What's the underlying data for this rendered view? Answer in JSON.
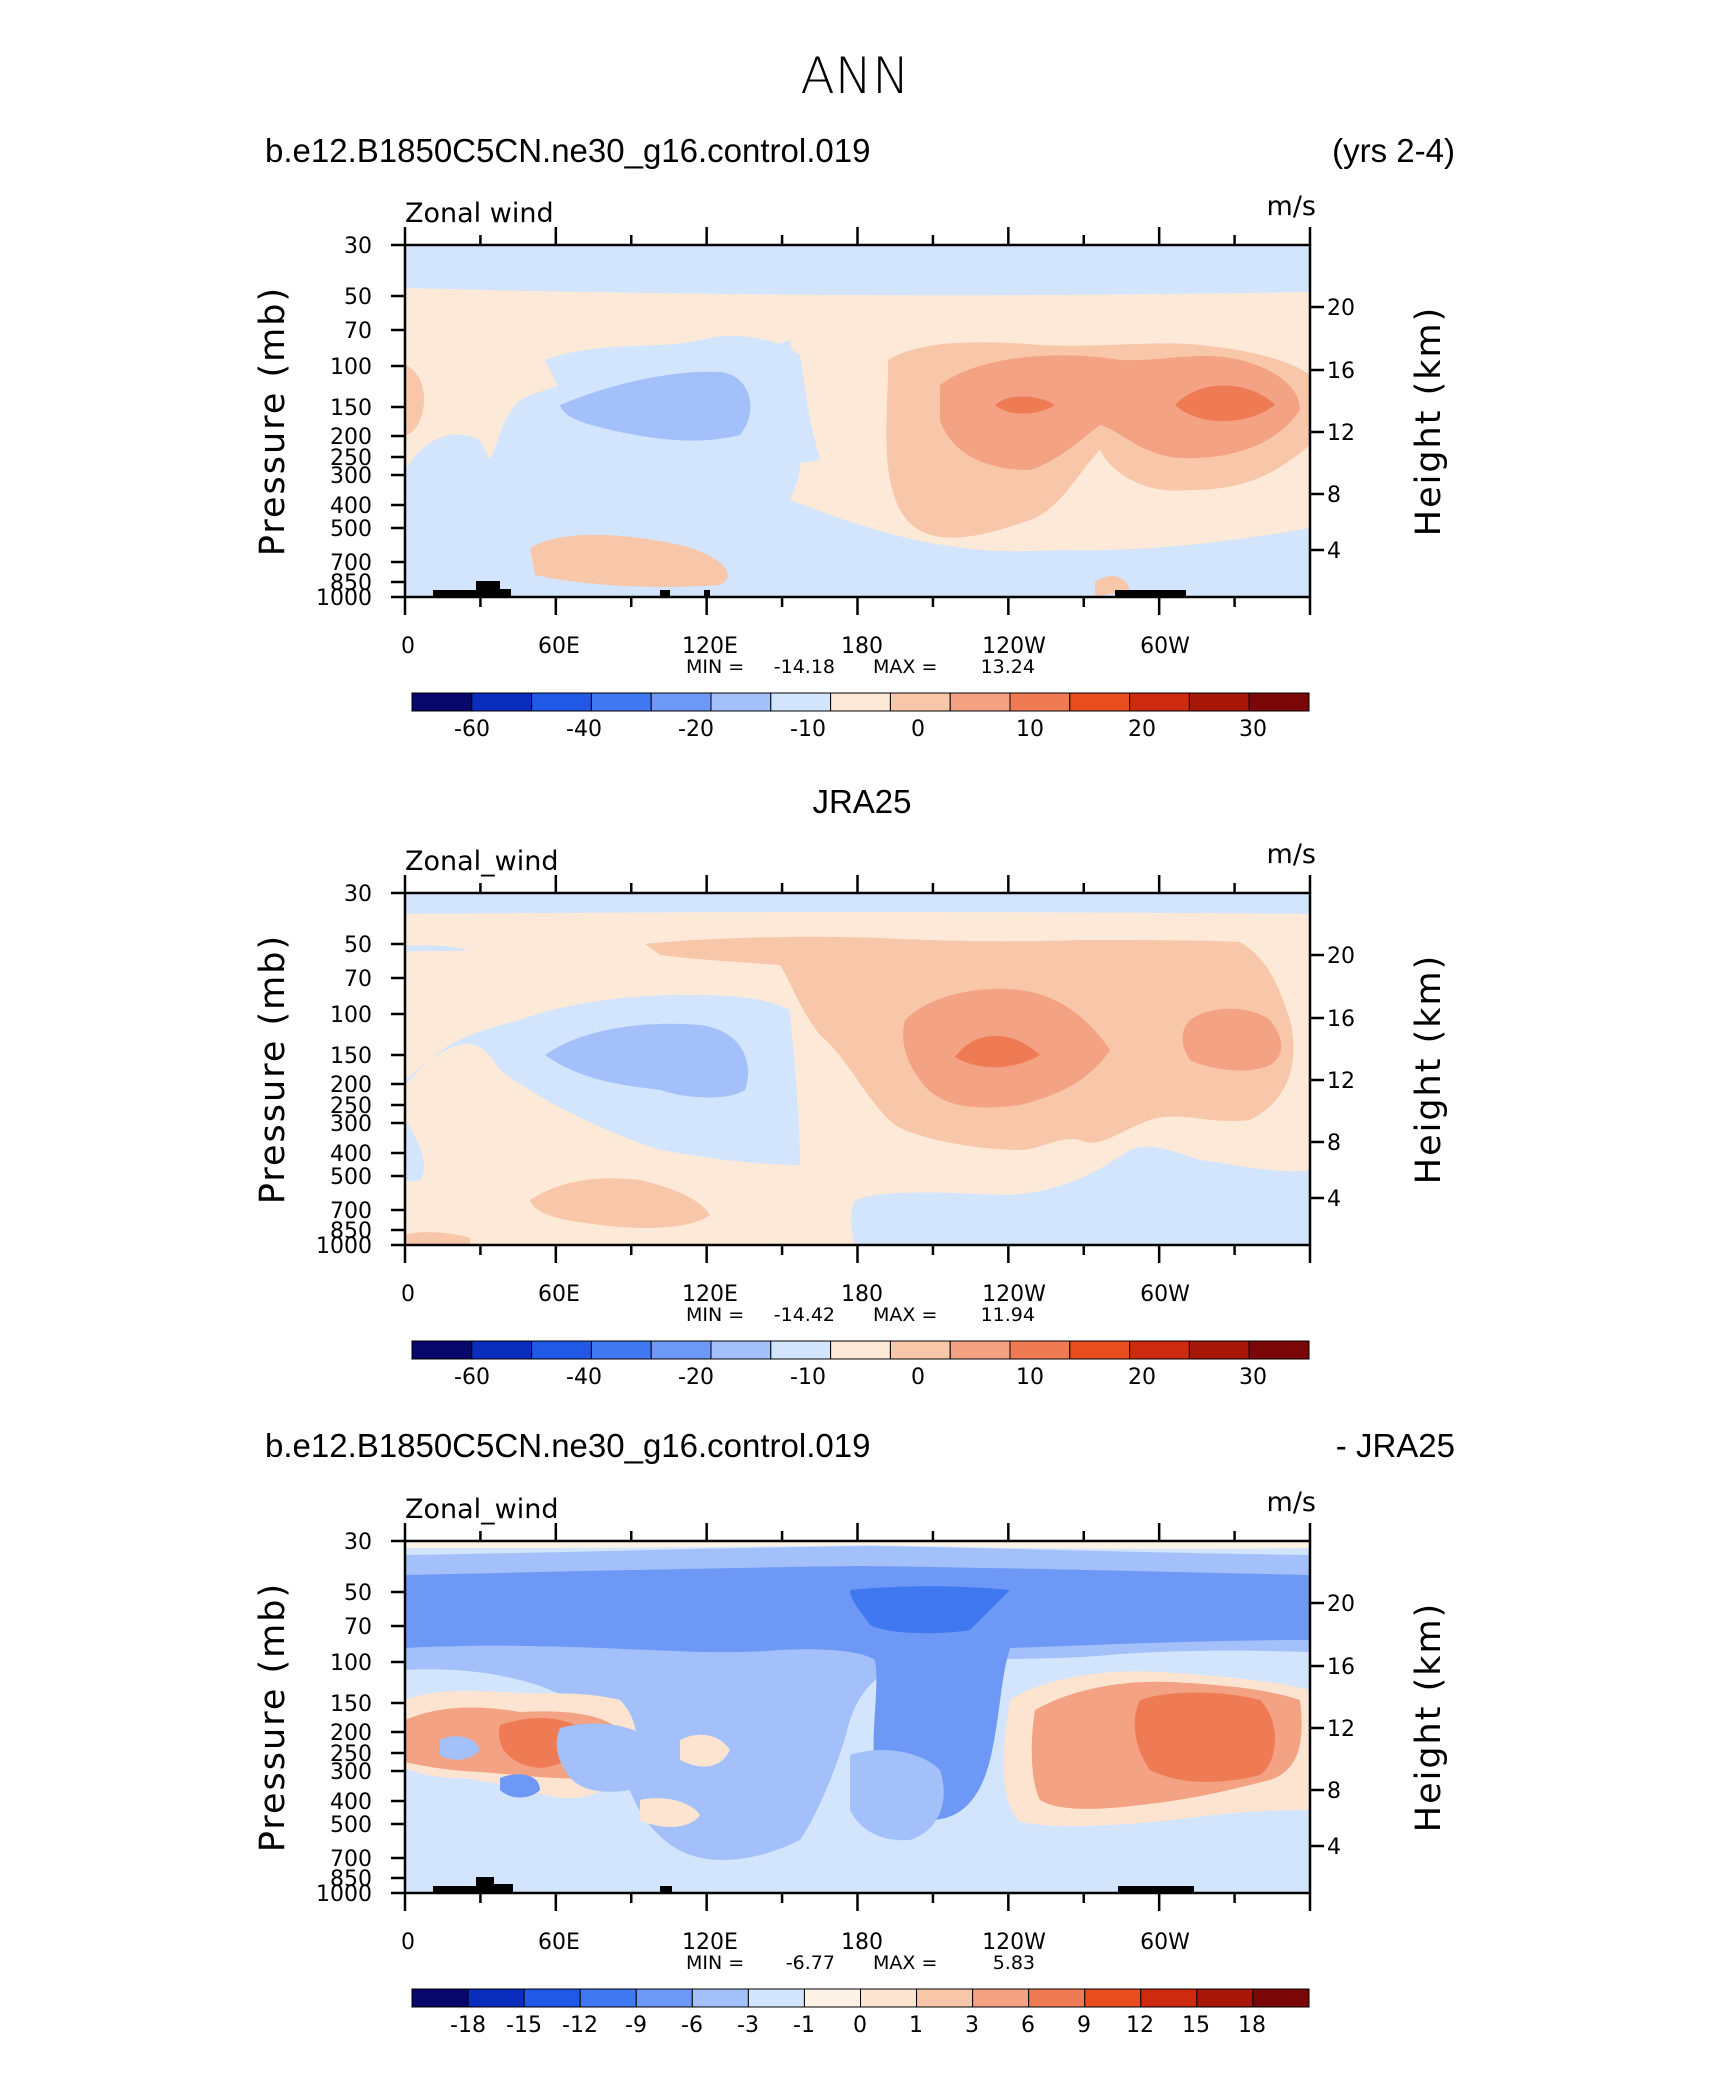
{
  "figure": {
    "season": "ANN",
    "units": "m/s",
    "colors": {
      "cb_main": [
        "#08086b",
        "#0a2dbd",
        "#2158e5",
        "#3f78f0",
        "#6e98f5",
        "#a3c0fa",
        "#d2e5fc",
        "#fde9d8",
        "#f8c7aa",
        "#f3a283",
        "#ef7b55",
        "#e84d1f",
        "#cc2b10",
        "#a8170a",
        "#7a0707"
      ],
      "cb_diff": [
        "#08086b",
        "#0a2dbd",
        "#2158e5",
        "#3f78f0",
        "#6e98f5",
        "#a3c0fa",
        "#d2e5fc",
        "#fdf2e6",
        "#fde4d1",
        "#f8c7aa",
        "#f3a283",
        "#ef7b55",
        "#e84d1f",
        "#cc2b10",
        "#a8170a",
        "#7a0707"
      ],
      "land": "#000000"
    }
  },
  "chart_data": [
    {
      "type": "contour",
      "id": "model",
      "title_left": "b.e12.B1850C5CN.ne30_g16.control.019",
      "title_right": "(yrs 2-4)",
      "variable_label": "Zonal wind",
      "units_label": "m/s",
      "ylabel": "Pressure (mb)",
      "ylabel_right": "Height (km)",
      "xticks": [
        "0",
        "60E",
        "120E",
        "180",
        "120W",
        "60W"
      ],
      "xrange_deg": [
        0,
        360
      ],
      "yticks": [
        "30",
        "50",
        "70",
        "100",
        "150",
        "200",
        "250",
        "300",
        "400",
        "500",
        "700",
        "850",
        "1000"
      ],
      "yticks_right": [
        "20",
        "16",
        "12",
        "8",
        "4"
      ],
      "stats_min_label": "MIN =",
      "stats_min": "-14.18",
      "stats_max_label": "MAX =",
      "stats_max": "13.24",
      "colorbar_labels": [
        "-60",
        "-40",
        "-20",
        "-10",
        "0",
        "10",
        "20",
        "30"
      ],
      "contour_levels": [
        -70,
        -60,
        -50,
        -40,
        -30,
        -20,
        -15,
        -10,
        -5,
        0,
        5,
        10,
        15,
        20,
        25,
        30,
        35
      ]
    },
    {
      "type": "contour",
      "id": "obs",
      "title_center": "JRA25",
      "variable_label": "Zonal_wind",
      "units_label": "m/s",
      "ylabel": "Pressure (mb)",
      "ylabel_right": "Height (km)",
      "xticks": [
        "0",
        "60E",
        "120E",
        "180",
        "120W",
        "60W"
      ],
      "xrange_deg": [
        0,
        360
      ],
      "yticks": [
        "30",
        "50",
        "70",
        "100",
        "150",
        "200",
        "250",
        "300",
        "400",
        "500",
        "700",
        "850",
        "1000"
      ],
      "yticks_right": [
        "20",
        "16",
        "12",
        "8",
        "4"
      ],
      "stats_min_label": "MIN =",
      "stats_min": "-14.42",
      "stats_max_label": "MAX =",
      "stats_max": "11.94",
      "colorbar_labels": [
        "-60",
        "-40",
        "-20",
        "-10",
        "0",
        "10",
        "20",
        "30"
      ],
      "contour_levels": [
        -70,
        -60,
        -50,
        -40,
        -30,
        -20,
        -15,
        -10,
        -5,
        0,
        5,
        10,
        15,
        20,
        25,
        30,
        35
      ]
    },
    {
      "type": "contour",
      "id": "diff",
      "title_left": "b.e12.B1850C5CN.ne30_g16.control.019",
      "title_right": "- JRA25",
      "variable_label": "Zonal_wind",
      "units_label": "m/s",
      "ylabel": "Pressure (mb)",
      "ylabel_right": "Height (km)",
      "xticks": [
        "0",
        "60E",
        "120E",
        "180",
        "120W",
        "60W"
      ],
      "xrange_deg": [
        0,
        360
      ],
      "yticks": [
        "30",
        "50",
        "70",
        "100",
        "150",
        "200",
        "250",
        "300",
        "400",
        "500",
        "700",
        "850",
        "1000"
      ],
      "yticks_right": [
        "20",
        "16",
        "12",
        "8",
        "4"
      ],
      "stats_min_label": "MIN =",
      "stats_min": "-6.77",
      "stats_max_label": "MAX =",
      "stats_max": "5.83",
      "colorbar_labels": [
        "-18",
        "-15",
        "-12",
        "-9",
        "-6",
        "-3",
        "-1",
        "0",
        "1",
        "3",
        "6",
        "9",
        "12",
        "15",
        "18"
      ],
      "contour_levels": [
        -21,
        -18,
        -15,
        -12,
        -9,
        -6,
        -3,
        -1,
        0,
        1,
        3,
        6,
        9,
        12,
        15,
        18,
        21
      ]
    }
  ]
}
